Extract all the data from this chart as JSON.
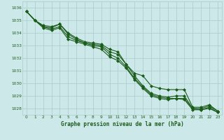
{
  "line1": [
    1035.7,
    1035.0,
    1034.6,
    1034.5,
    1034.7,
    1034.0,
    1033.6,
    1033.3,
    1033.2,
    1033.1,
    1032.7,
    1032.5,
    1031.5,
    1030.8,
    1030.6,
    1029.8,
    1029.6,
    1029.5,
    1029.5,
    1029.5,
    1028.1,
    1028.1,
    1028.3,
    1027.8
  ],
  "line2": [
    1035.7,
    1035.0,
    1034.5,
    1034.4,
    1034.7,
    1033.9,
    1033.5,
    1033.2,
    1033.1,
    1033.0,
    1032.5,
    1032.3,
    1031.5,
    1030.6,
    1029.8,
    1029.2,
    1029.0,
    1028.9,
    1029.0,
    1029.0,
    1028.0,
    1028.0,
    1028.2,
    1027.8
  ],
  "line3": [
    1035.7,
    1035.0,
    1034.5,
    1034.3,
    1034.5,
    1033.7,
    1033.4,
    1033.2,
    1033.0,
    1032.9,
    1032.3,
    1032.0,
    1031.3,
    1030.4,
    1029.7,
    1029.1,
    1028.9,
    1028.8,
    1028.8,
    1028.8,
    1028.0,
    1027.9,
    1028.1,
    1027.7
  ],
  "line4": [
    1035.7,
    1035.0,
    1034.4,
    1034.2,
    1034.4,
    1033.5,
    1033.3,
    1033.1,
    1032.9,
    1032.7,
    1032.1,
    1031.8,
    1031.2,
    1030.3,
    1029.6,
    1029.0,
    1028.8,
    1028.7,
    1028.8,
    1028.7,
    1027.9,
    1027.9,
    1028.0,
    1027.7
  ],
  "x": [
    0,
    1,
    2,
    3,
    4,
    5,
    6,
    7,
    8,
    9,
    10,
    11,
    12,
    13,
    14,
    15,
    16,
    17,
    18,
    19,
    20,
    21,
    22,
    23
  ],
  "ylim": [
    1027.5,
    1036.5
  ],
  "yticks": [
    1028,
    1029,
    1030,
    1031,
    1032,
    1033,
    1034,
    1035,
    1036
  ],
  "line_color": "#1a5c1a",
  "bg_color": "#cce8e8",
  "grid_color_major": "#aacccc",
  "grid_color_minor": "#aacccc",
  "xlabel": "Graphe pression niveau de la mer (hPa)",
  "tick_color": "#1a5c1a",
  "marker": "D",
  "markersize": 2.0,
  "linewidth": 0.8,
  "tick_fontsize": 4.2,
  "xlabel_fontsize": 5.5
}
